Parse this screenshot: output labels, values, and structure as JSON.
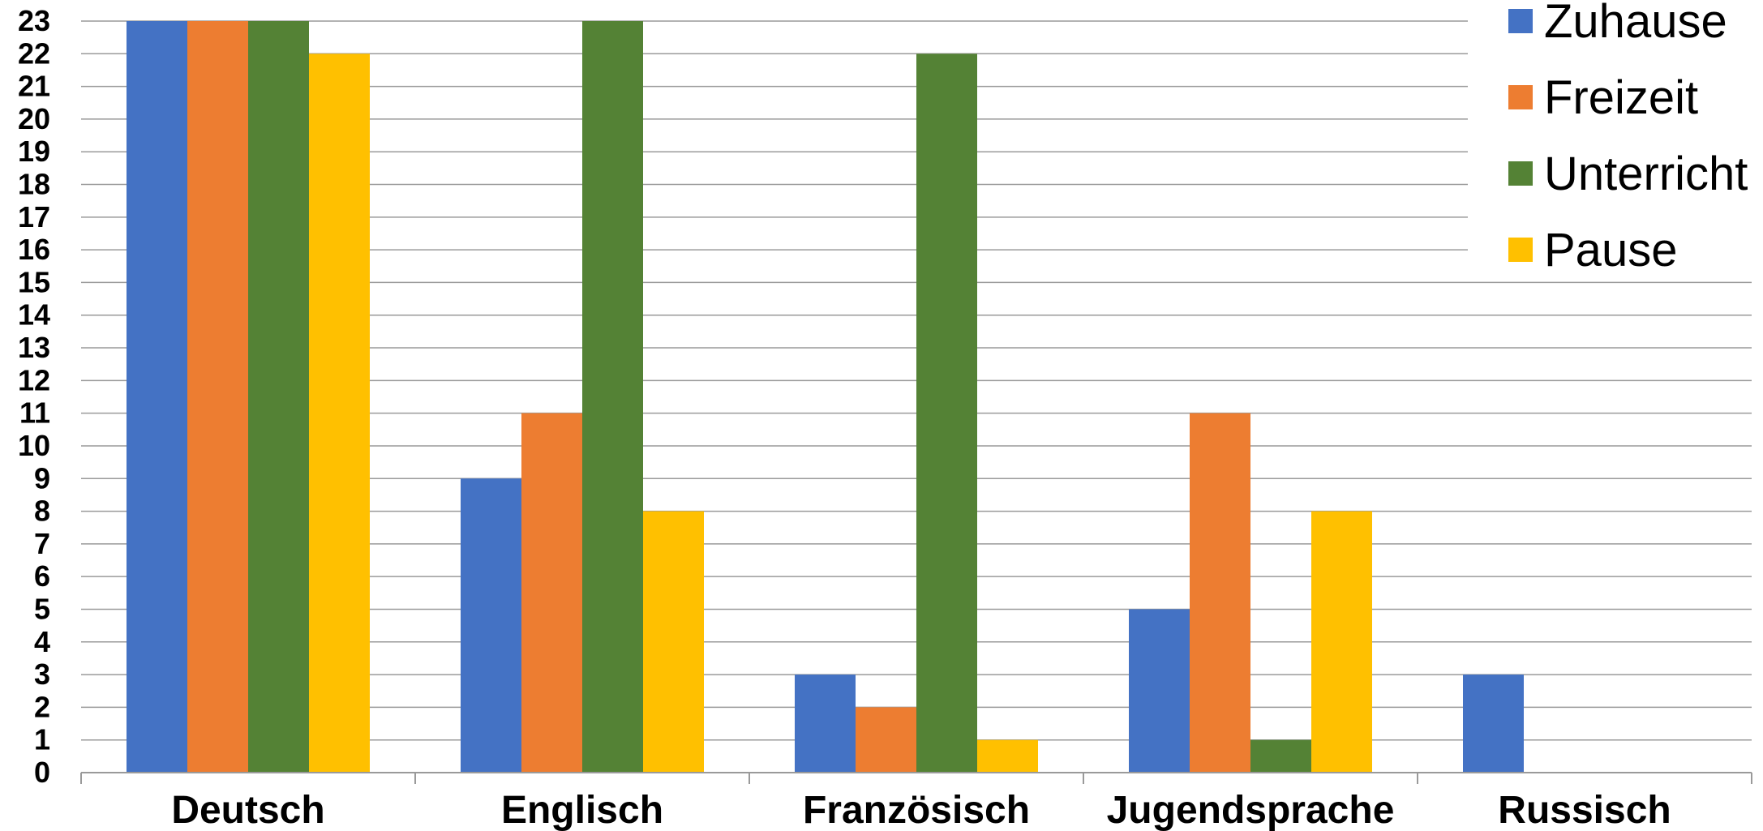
{
  "chart_data": {
    "type": "bar",
    "categories": [
      "Deutsch",
      "Englisch",
      "Französisch",
      "Jugendsprache",
      "Russisch"
    ],
    "series": [
      {
        "name": "Zuhause",
        "color": "#4472C4",
        "values": [
          23,
          9,
          3,
          5,
          3
        ]
      },
      {
        "name": "Freizeit",
        "color": "#ED7D31",
        "values": [
          23,
          11,
          2,
          11,
          0
        ]
      },
      {
        "name": "Unterricht",
        "color": "#548235",
        "values": [
          23,
          23,
          22,
          1,
          0
        ]
      },
      {
        "name": "Pause",
        "color": "#FFC000",
        "values": [
          22,
          8,
          1,
          8,
          0
        ]
      }
    ],
    "title": "",
    "xlabel": "",
    "ylabel": "",
    "ylim": [
      0,
      23
    ],
    "yticks": [
      0,
      1,
      2,
      3,
      4,
      5,
      6,
      7,
      8,
      9,
      10,
      11,
      12,
      13,
      14,
      15,
      16,
      17,
      18,
      19,
      20,
      21,
      22,
      23
    ],
    "grid": true,
    "legend_position": "top-right"
  }
}
